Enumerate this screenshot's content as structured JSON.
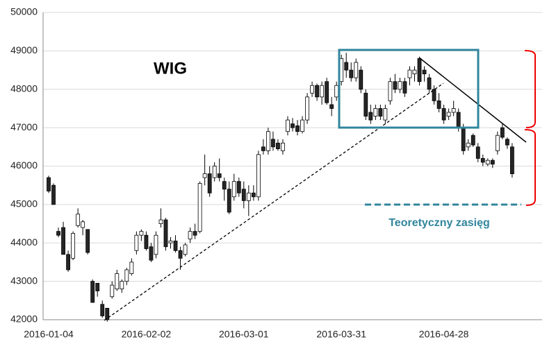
{
  "chart_data": {
    "type": "candlestick",
    "title": "WIG",
    "annotations": [
      "Teoretyczny zasięg"
    ],
    "categories": [
      "2016-01-04",
      null,
      null,
      null,
      null,
      null,
      null,
      null,
      null,
      null,
      null,
      null,
      null,
      null,
      null,
      null,
      null,
      null,
      null,
      null,
      "2016-02-02",
      null,
      null,
      null,
      null,
      null,
      null,
      null,
      null,
      null,
      null,
      null,
      null,
      null,
      null,
      null,
      null,
      null,
      null,
      null,
      "2016-03-01",
      null,
      null,
      null,
      null,
      null,
      null,
      null,
      null,
      null,
      null,
      null,
      null,
      null,
      null,
      null,
      null,
      null,
      null,
      null,
      "2016-03-31",
      null,
      null,
      null,
      null,
      null,
      null,
      null,
      null,
      null,
      null,
      null,
      null,
      null,
      null,
      null,
      null,
      null,
      null,
      null,
      null,
      "2016-04-28",
      null,
      null,
      null,
      null,
      null,
      null,
      null,
      null,
      null,
      null,
      null,
      null,
      null,
      null
    ],
    "open": [
      45700,
      45500,
      44300,
      44400,
      43700,
      43600,
      44450,
      44400,
      44350,
      43000,
      42950,
      42400,
      42300,
      42600,
      42800,
      42800,
      43000,
      43200,
      43800,
      44200,
      44200,
      43900,
      43700,
      44500,
      44600,
      44000,
      44050,
      43800,
      43700,
      44100,
      44300,
      44300,
      45700,
      45800,
      45700,
      45800,
      45600,
      45400,
      45200,
      45600,
      45400,
      45100,
      45300,
      45200,
      46500,
      46400,
      46700,
      46600,
      46400,
      46900,
      47100,
      47050,
      46900,
      47200,
      47900,
      48100,
      47800,
      48200,
      47600,
      47800,
      48200,
      48700,
      48500,
      48300,
      48500,
      47900,
      47400,
      47300,
      47500,
      47200,
      47700,
      48200,
      48000,
      48200,
      48300,
      48400,
      48800,
      48500,
      48300,
      48000,
      47700,
      47500,
      47300,
      47400,
      47400,
      47000,
      46500,
      46800,
      46500,
      46200,
      46050,
      46150,
      46400,
      47000,
      46700,
      46500
    ],
    "high": [
      45750,
      45550,
      44400,
      44550,
      43800,
      44300,
      44900,
      44600,
      44350,
      43050,
      42950,
      42500,
      42300,
      43000,
      43300,
      43050,
      43350,
      43600,
      44300,
      44350,
      44300,
      44000,
      44300,
      44900,
      44650,
      44150,
      44200,
      43900,
      44000,
      44400,
      44500,
      45600,
      46300,
      46000,
      46100,
      46200,
      45700,
      45600,
      45800,
      45700,
      45600,
      45500,
      45500,
      46400,
      46700,
      47000,
      46900,
      46700,
      46700,
      47300,
      47250,
      47200,
      47300,
      47900,
      48200,
      48150,
      48200,
      48300,
      47800,
      48200,
      48900,
      48950,
      48700,
      48800,
      48600,
      48000,
      47600,
      47600,
      47600,
      47600,
      48300,
      48400,
      48300,
      48300,
      48600,
      48600,
      48850,
      48600,
      48400,
      48100,
      47900,
      47600,
      47500,
      47700,
      47500,
      47100,
      46700,
      46850,
      46600,
      46300,
      46200,
      46200,
      46900,
      47100,
      46750,
      46600
    ],
    "low": [
      45300,
      45000,
      44150,
      43700,
      43250,
      43550,
      44400,
      44200,
      43700,
      42450,
      42600,
      42050,
      41950,
      42550,
      42750,
      42700,
      42900,
      43150,
      43700,
      44050,
      43800,
      43500,
      43600,
      44400,
      43800,
      43850,
      43750,
      43300,
      43650,
      44000,
      44100,
      44250,
      45500,
      45200,
      45600,
      45600,
      45100,
      44750,
      45100,
      45200,
      44900,
      44700,
      45100,
      45100,
      46300,
      46300,
      46400,
      46400,
      46300,
      46800,
      46900,
      46800,
      46850,
      47100,
      47800,
      47700,
      47600,
      47600,
      47300,
      47700,
      48100,
      48300,
      48200,
      48200,
      47900,
      47200,
      47100,
      47200,
      47200,
      47100,
      47600,
      47900,
      47900,
      47800,
      48100,
      48200,
      48100,
      48200,
      47900,
      47600,
      47400,
      47100,
      47200,
      47300,
      46900,
      46300,
      46400,
      46500,
      46100,
      46000,
      46000,
      45950,
      46300,
      46700,
      46450,
      45700
    ],
    "close": [
      45350,
      45000,
      44200,
      43700,
      43300,
      44250,
      44750,
      44550,
      43750,
      42450,
      42750,
      42100,
      42000,
      42900,
      43200,
      43000,
      43300,
      43500,
      44200,
      44300,
      43850,
      43550,
      44200,
      44600,
      43900,
      44050,
      43800,
      43600,
      43950,
      44300,
      44200,
      45550,
      45800,
      45300,
      46000,
      45700,
      45400,
      44800,
      45600,
      45300,
      45100,
      45300,
      45200,
      46300,
      46400,
      46900,
      46500,
      46450,
      46600,
      47200,
      47000,
      46900,
      47200,
      47800,
      48100,
      47800,
      48100,
      47650,
      47500,
      48100,
      48800,
      48500,
      48300,
      48700,
      48000,
      47300,
      47200,
      47500,
      47300,
      47500,
      48200,
      48000,
      48200,
      47900,
      48500,
      48500,
      48200,
      48400,
      48000,
      47700,
      47500,
      47200,
      47400,
      47500,
      47000,
      46400,
      46600,
      46550,
      46200,
      46100,
      46150,
      46050,
      46800,
      46750,
      46550,
      45800
    ],
    "up_color": "#ffffff",
    "down_color": "#262626",
    "ylim": [
      42000,
      50000
    ],
    "yticks": [
      42000,
      43000,
      44000,
      45000,
      46000,
      47000,
      48000,
      49000,
      50000
    ],
    "grid": true
  }
}
